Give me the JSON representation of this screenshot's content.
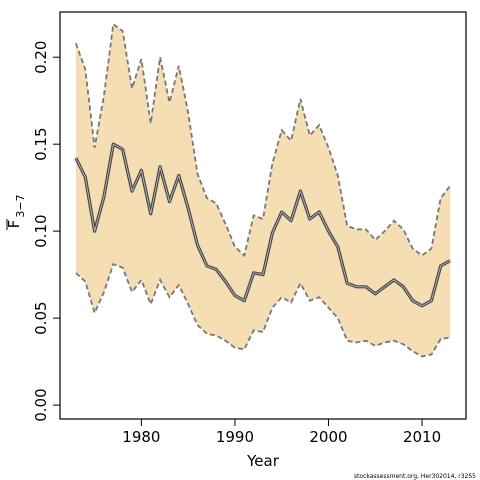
{
  "chart_data": {
    "type": "area",
    "title": "",
    "xlabel": "Year",
    "ylabel_main": "F",
    "ylabel_sub": "3−7",
    "xlim": [
      1971.3,
      2014.7
    ],
    "ylim": [
      -0.008,
      0.226
    ],
    "x_ticks": [
      1980,
      1990,
      2000,
      2010
    ],
    "y_ticks": [
      0.0,
      0.05,
      0.1,
      0.15,
      0.2
    ],
    "y_tick_labels": [
      "0.00",
      "0.05",
      "0.10",
      "0.15",
      "0.20"
    ],
    "grid": false,
    "colors": {
      "band_fill": "#f5deb3",
      "band_edge": "#777777",
      "line_outer": "#444444",
      "line_inner": "#bbbbbb",
      "axis": "#000000"
    },
    "x": [
      1973,
      1974,
      1975,
      1976,
      1977,
      1978,
      1979,
      1980,
      1981,
      1982,
      1983,
      1984,
      1985,
      1986,
      1987,
      1988,
      1989,
      1990,
      1991,
      1992,
      1993,
      1994,
      1995,
      1996,
      1997,
      1998,
      1999,
      2000,
      2001,
      2002,
      2003,
      2004,
      2005,
      2006,
      2007,
      2008,
      2009,
      2010,
      2011,
      2012,
      2013
    ],
    "series": [
      {
        "role": "estimate",
        "values": [
          0.142,
          0.131,
          0.1,
          0.12,
          0.15,
          0.147,
          0.123,
          0.135,
          0.11,
          0.137,
          0.117,
          0.132,
          0.113,
          0.092,
          0.08,
          0.078,
          0.071,
          0.063,
          0.06,
          0.076,
          0.075,
          0.099,
          0.111,
          0.106,
          0.123,
          0.107,
          0.111,
          0.1,
          0.091,
          0.07,
          0.068,
          0.068,
          0.064,
          0.068,
          0.072,
          0.068,
          0.06,
          0.057,
          0.06,
          0.08,
          0.083
        ]
      },
      {
        "role": "upper",
        "values": [
          0.208,
          0.193,
          0.148,
          0.178,
          0.219,
          0.215,
          0.182,
          0.199,
          0.162,
          0.2,
          0.174,
          0.195,
          0.168,
          0.133,
          0.119,
          0.116,
          0.104,
          0.091,
          0.086,
          0.109,
          0.107,
          0.139,
          0.158,
          0.152,
          0.176,
          0.155,
          0.161,
          0.148,
          0.132,
          0.103,
          0.101,
          0.101,
          0.095,
          0.1,
          0.106,
          0.101,
          0.09,
          0.086,
          0.09,
          0.119,
          0.126
        ]
      },
      {
        "role": "lower",
        "values": [
          0.076,
          0.071,
          0.053,
          0.065,
          0.081,
          0.079,
          0.065,
          0.072,
          0.058,
          0.072,
          0.062,
          0.069,
          0.058,
          0.046,
          0.041,
          0.04,
          0.037,
          0.033,
          0.032,
          0.043,
          0.042,
          0.056,
          0.062,
          0.059,
          0.07,
          0.06,
          0.062,
          0.056,
          0.05,
          0.037,
          0.036,
          0.037,
          0.034,
          0.036,
          0.037,
          0.035,
          0.031,
          0.028,
          0.029,
          0.038,
          0.039
        ]
      }
    ],
    "footnote": "stockassessment.org, Her302014, r3255"
  }
}
